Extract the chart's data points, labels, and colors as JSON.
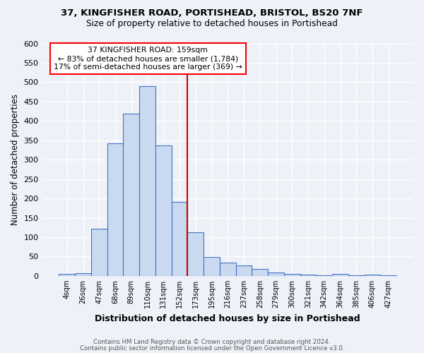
{
  "title1": "37, KINGFISHER ROAD, PORTISHEAD, BRISTOL, BS20 7NF",
  "title2": "Size of property relative to detached houses in Portishead",
  "xlabel": "Distribution of detached houses by size in Portishead",
  "ylabel": "Number of detached properties",
  "bar_labels": [
    "4sqm",
    "26sqm",
    "47sqm",
    "68sqm",
    "89sqm",
    "110sqm",
    "131sqm",
    "152sqm",
    "173sqm",
    "195sqm",
    "216sqm",
    "237sqm",
    "258sqm",
    "279sqm",
    "300sqm",
    "321sqm",
    "342sqm",
    "364sqm",
    "385sqm",
    "406sqm",
    "427sqm"
  ],
  "bar_values": [
    5,
    8,
    122,
    343,
    418,
    490,
    337,
    192,
    113,
    49,
    34,
    27,
    18,
    9,
    5,
    4,
    2,
    5,
    2,
    3,
    2
  ],
  "bar_color": "#c9d9f0",
  "bar_edge_color": "#4472c4",
  "vline_x": 7.5,
  "vline_color": "#cc0000",
  "annotation_text1": "37 KINGFISHER ROAD: 159sqm",
  "annotation_text2": "← 83% of detached houses are smaller (1,784)",
  "annotation_text3": "17% of semi-detached houses are larger (369) →",
  "ylim": [
    0,
    600
  ],
  "yticks": [
    0,
    50,
    100,
    150,
    200,
    250,
    300,
    350,
    400,
    450,
    500,
    550,
    600
  ],
  "footnote1": "Contains HM Land Registry data © Crown copyright and database right 2024.",
  "footnote2": "Contains public sector information licensed under the Open Government Licence v3.0.",
  "bg_color": "#eef2f8",
  "plot_bg_color": "#eef2f8"
}
